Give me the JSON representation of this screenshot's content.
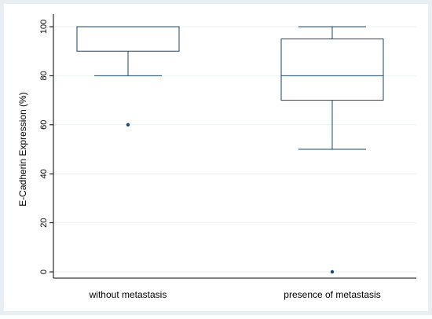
{
  "chart_data": {
    "type": "box",
    "title": "",
    "xlabel": "",
    "ylabel": "E-Cadherin Expression (%)",
    "ylim": [
      -5,
      105
    ],
    "yticks": [
      0,
      20,
      40,
      60,
      80,
      100
    ],
    "grid": true,
    "legend": "none",
    "categories": [
      "without metastasis",
      "presence of metastasis"
    ],
    "boxes": [
      {
        "category": "without metastasis",
        "q1": 90,
        "median": 100,
        "q3": 100,
        "whisker_low": 80,
        "whisker_high": 100,
        "outliers": [
          60
        ]
      },
      {
        "category": "presence of metastasis",
        "q1": 70,
        "median": 80,
        "q3": 95,
        "whisker_low": 50,
        "whisker_high": 100,
        "outliers": [
          0
        ]
      }
    ]
  },
  "colors": {
    "outer_background": "#e8eef2",
    "plot_background": "#ffffff",
    "grid": "#eaf2f3",
    "box_stroke": "#1a476f",
    "axis": "#000000"
  }
}
